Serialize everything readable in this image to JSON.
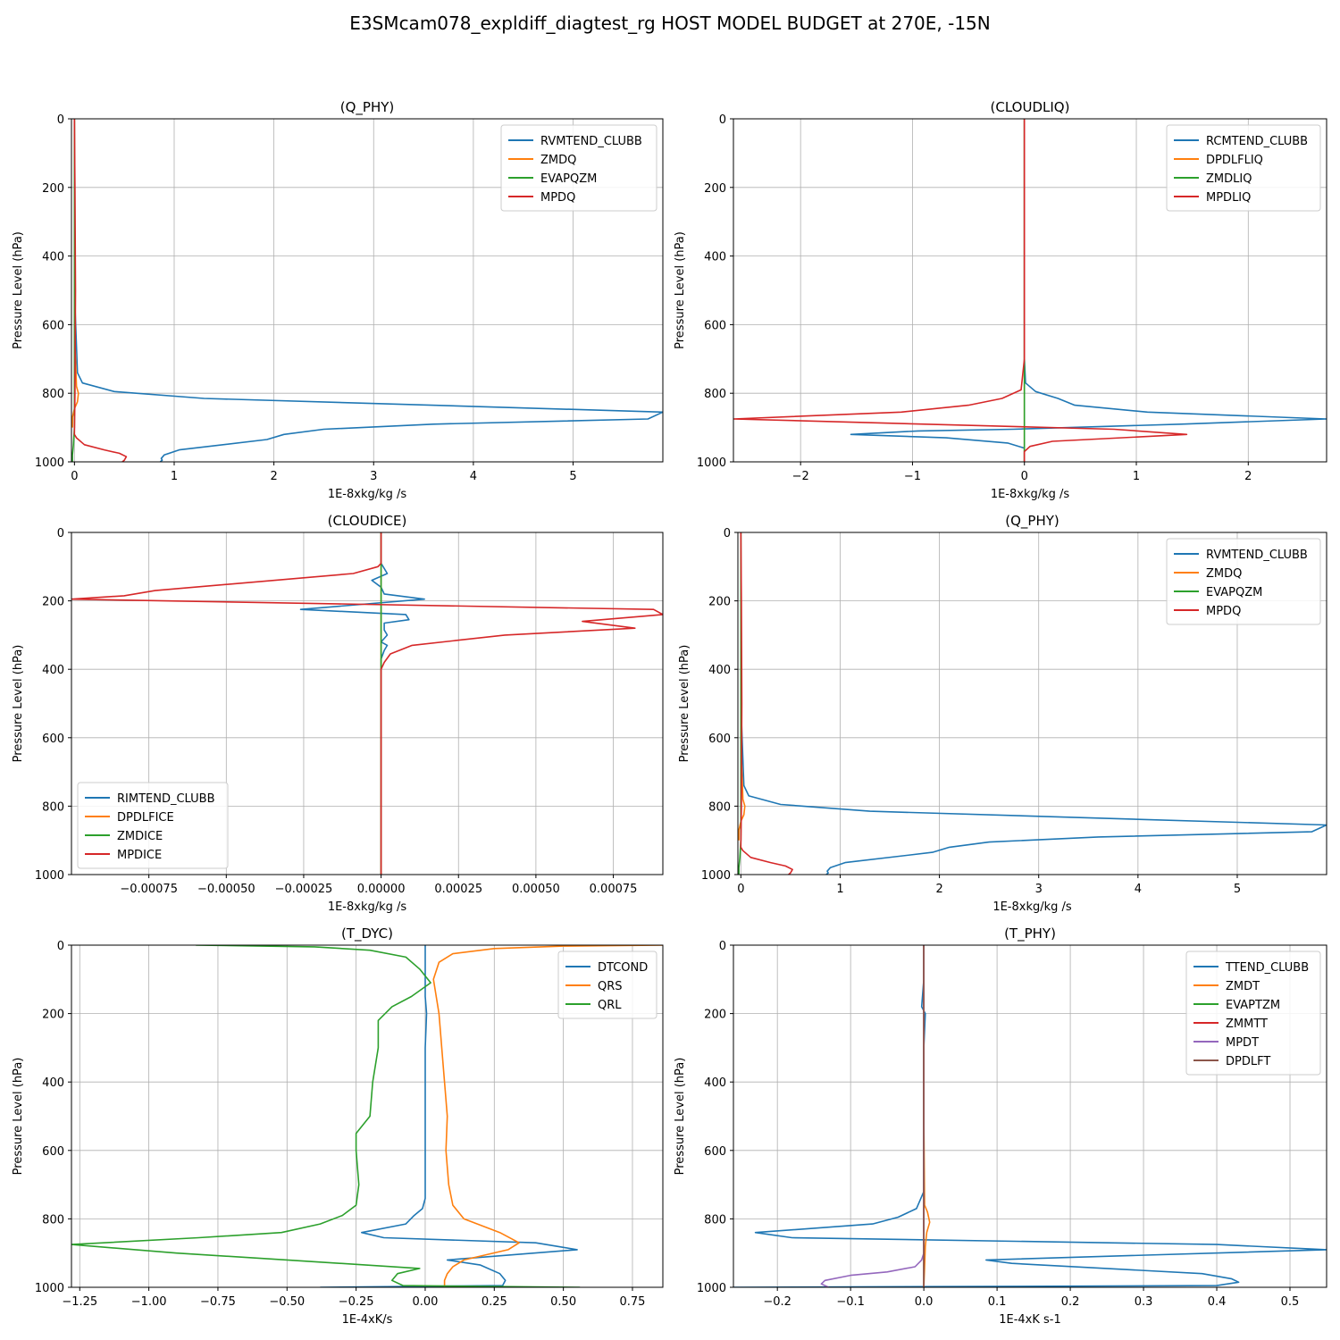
{
  "figure": {
    "title": "E3SMcam078_expldiff_diagtest_rg HOST MODEL BUDGET at 270E, -15N"
  },
  "chart_data": [
    {
      "type": "line",
      "title": "(Q_PHY)",
      "xlabel": "1E-8xkg/kg /s",
      "ylabel": "Pressure Level (hPa)",
      "xlim": [
        -0.03,
        5.9
      ],
      "ylim": [
        1000,
        0
      ],
      "xticks": [
        0,
        1,
        2,
        3,
        4,
        5
      ],
      "xtick_labels": [
        "0",
        "1",
        "2",
        "3",
        "4",
        "5"
      ],
      "yticks": [
        0,
        200,
        400,
        600,
        800,
        1000
      ],
      "grid": true,
      "legend_position": "top-right",
      "series": [
        {
          "name": "RVMTEND_CLUBB",
          "color": "#1f77b4",
          "x": [
            0,
            0,
            0,
            0.03,
            0.08,
            0.4,
            1.3,
            5.9,
            5.75,
            3.6,
            2.5,
            2.1,
            1.93,
            1.05,
            0.9,
            0.87,
            0.88,
            0.86
          ],
          "y": [
            0,
            200,
            500,
            740,
            770,
            795,
            815,
            855,
            875,
            890,
            905,
            920,
            935,
            965,
            980,
            990,
            995,
            1000
          ]
        },
        {
          "name": "ZMDQ",
          "color": "#ff7f0e",
          "x": [
            0,
            0,
            0,
            0.02,
            0.04,
            0.03,
            0.0,
            -0.02,
            -0.02
          ],
          "y": [
            0,
            200,
            600,
            780,
            800,
            825,
            845,
            870,
            900
          ]
        },
        {
          "name": "EVAPQZM",
          "color": "#2ca02c",
          "x": [
            0,
            0,
            0,
            -0.01,
            -0.02,
            -0.02
          ],
          "y": [
            0,
            600,
            900,
            950,
            980,
            1000
          ]
        },
        {
          "name": "MPDQ",
          "color": "#d62728",
          "x": [
            0,
            0.005,
            0.01,
            0.005,
            0.0,
            0.02,
            0.1,
            0.3,
            0.45,
            0.52,
            0.5,
            0.48
          ],
          "y": [
            0,
            200,
            500,
            800,
            920,
            930,
            950,
            965,
            975,
            985,
            995,
            1000
          ]
        }
      ]
    },
    {
      "type": "line",
      "title": "(CLOUDLIQ)",
      "xlabel": "1E-8xkg/kg /s",
      "ylabel": "Pressure Level (hPa)",
      "xlim": [
        -2.6,
        2.7
      ],
      "ylim": [
        1000,
        0
      ],
      "xticks": [
        -2,
        -1,
        0,
        1,
        2
      ],
      "xtick_labels": [
        "−2",
        "−1",
        "0",
        "1",
        "2"
      ],
      "yticks": [
        0,
        200,
        400,
        600,
        800,
        1000
      ],
      "grid": true,
      "legend_position": "top-right",
      "series": [
        {
          "name": "RCMTEND_CLUBB",
          "color": "#1f77b4",
          "x": [
            0,
            0,
            0.01,
            0.1,
            0.3,
            0.45,
            1.1,
            2.7,
            1.4,
            -0.1,
            -0.95,
            -1.55,
            -0.7,
            -0.15,
            0.0,
            0.0
          ],
          "y": [
            0,
            700,
            770,
            795,
            815,
            835,
            855,
            875,
            890,
            905,
            910,
            920,
            930,
            945,
            960,
            1000
          ]
        },
        {
          "name": "DPDLFLIQ",
          "color": "#ff7f0e",
          "x": [
            0,
            0
          ],
          "y": [
            0,
            1000
          ]
        },
        {
          "name": "ZMDLIQ",
          "color": "#2ca02c",
          "x": [
            0,
            0
          ],
          "y": [
            0,
            1000
          ]
        },
        {
          "name": "MPDLIQ",
          "color": "#d62728",
          "x": [
            0,
            0,
            -0.03,
            -0.2,
            -0.5,
            -1.1,
            -2.6,
            0.8,
            1.45,
            0.25,
            0.05,
            0.0,
            0.0
          ],
          "y": [
            0,
            700,
            790,
            815,
            835,
            855,
            875,
            905,
            920,
            940,
            955,
            970,
            1000
          ]
        }
      ]
    },
    {
      "type": "line",
      "title": "(CLOUDICE)",
      "xlabel": "1E-8xkg/kg /s",
      "ylabel": "Pressure Level (hPa)",
      "xlim": [
        -0.001,
        0.00091
      ],
      "ylim": [
        1000,
        0
      ],
      "xticks": [
        -0.00075,
        -0.0005,
        -0.00025,
        0,
        0.00025,
        0.0005,
        0.00075
      ],
      "xtick_labels": [
        "−0.00075",
        "−0.00050",
        "−0.00025",
        "0.00000",
        "0.00025",
        "0.00050",
        "0.00075"
      ],
      "yticks": [
        0,
        200,
        400,
        600,
        800,
        1000
      ],
      "grid": true,
      "legend_position": "lower-left",
      "series": [
        {
          "name": "RIMTEND_CLUBB",
          "color": "#1f77b4",
          "x": [
            0,
            0,
            2e-05,
            -3e-05,
            0.0,
            1e-05,
            0.00014,
            -0.00026,
            8e-05,
            9e-05,
            1e-05,
            1e-05,
            2e-05,
            0.0,
            2e-05,
            1e-05,
            0.0,
            0.0
          ],
          "y": [
            0,
            90,
            120,
            140,
            160,
            180,
            195,
            225,
            240,
            255,
            265,
            285,
            300,
            320,
            330,
            345,
            370,
            1000
          ]
        },
        {
          "name": "DPDLFICE",
          "color": "#ff7f0e",
          "x": [
            0,
            0
          ],
          "y": [
            0,
            1000
          ]
        },
        {
          "name": "ZMDICE",
          "color": "#2ca02c",
          "x": [
            0,
            0
          ],
          "y": [
            0,
            1000
          ]
        },
        {
          "name": "MPDICE",
          "color": "#d62728",
          "x": [
            0,
            0,
            -1e-05,
            -9e-05,
            -0.00073,
            -0.00083,
            -0.001,
            0.00088,
            0.00091,
            0.00065,
            0.00082,
            0.0004,
            0.0001,
            3e-05,
            1e-05,
            0.0,
            0.0
          ],
          "y": [
            0,
            90,
            100,
            120,
            170,
            185,
            195,
            225,
            240,
            260,
            280,
            300,
            330,
            355,
            380,
            400,
            1000
          ]
        }
      ]
    },
    {
      "type": "line",
      "title": "(Q_PHY)",
      "xlabel": "1E-8xkg/kg /s",
      "ylabel": "Pressure Level (hPa)",
      "xlim": [
        -0.03,
        5.9
      ],
      "ylim": [
        1000,
        0
      ],
      "xticks": [
        0,
        1,
        2,
        3,
        4,
        5
      ],
      "xtick_labels": [
        "0",
        "1",
        "2",
        "3",
        "4",
        "5"
      ],
      "yticks": [
        0,
        200,
        400,
        600,
        800,
        1000
      ],
      "grid": true,
      "legend_position": "top-right",
      "series": [
        {
          "name": "RVMTEND_CLUBB",
          "color": "#1f77b4",
          "x": [
            0,
            0,
            0,
            0.03,
            0.08,
            0.4,
            1.3,
            5.9,
            5.75,
            3.6,
            2.5,
            2.1,
            1.93,
            1.05,
            0.9,
            0.87,
            0.88,
            0.86
          ],
          "y": [
            0,
            200,
            500,
            740,
            770,
            795,
            815,
            855,
            875,
            890,
            905,
            920,
            935,
            965,
            980,
            990,
            995,
            1000
          ]
        },
        {
          "name": "ZMDQ",
          "color": "#ff7f0e",
          "x": [
            0,
            0,
            0,
            0.02,
            0.04,
            0.03,
            0.0,
            -0.02,
            -0.02
          ],
          "y": [
            0,
            200,
            600,
            780,
            800,
            825,
            845,
            870,
            900
          ]
        },
        {
          "name": "EVAPQZM",
          "color": "#2ca02c",
          "x": [
            0,
            0,
            0,
            -0.01,
            -0.02,
            -0.02
          ],
          "y": [
            0,
            600,
            900,
            950,
            980,
            1000
          ]
        },
        {
          "name": "MPDQ",
          "color": "#d62728",
          "x": [
            0,
            0.005,
            0.01,
            0.005,
            0.0,
            0.02,
            0.1,
            0.3,
            0.45,
            0.52,
            0.5,
            0.48
          ],
          "y": [
            0,
            200,
            500,
            800,
            920,
            930,
            950,
            965,
            975,
            985,
            995,
            1000
          ]
        }
      ]
    },
    {
      "type": "line",
      "title": "(T_DYC)",
      "xlabel": "1E-4xK/s",
      "ylabel": "Pressure Level (hPa)",
      "xlim": [
        -1.28,
        0.86
      ],
      "ylim": [
        1000,
        0
      ],
      "xticks": [
        -1.25,
        -1.0,
        -0.75,
        -0.5,
        -0.25,
        0,
        0.25,
        0.5,
        0.75
      ],
      "xtick_labels": [
        "−1.25",
        "−1.00",
        "−0.75",
        "−0.50",
        "−0.25",
        "0.00",
        "0.25",
        "0.50",
        "0.75"
      ],
      "yticks": [
        0,
        200,
        400,
        600,
        800,
        1000
      ],
      "grid": true,
      "legend_position": "top-right",
      "series": [
        {
          "name": "DTCOND",
          "color": "#1f77b4",
          "x": [
            0,
            0,
            0.005,
            0.0,
            0.0,
            0.0,
            -0.01,
            -0.04,
            -0.07,
            -0.23,
            -0.15,
            0.4,
            0.55,
            0.08,
            0.2,
            0.27,
            0.29,
            0.28,
            -0.38
          ],
          "y": [
            0,
            150,
            200,
            300,
            500,
            740,
            770,
            790,
            815,
            840,
            855,
            870,
            890,
            920,
            935,
            960,
            980,
            995,
            1000
          ]
        },
        {
          "name": "QRS",
          "color": "#ff7f0e",
          "x": [
            0.86,
            0.5,
            0.25,
            0.1,
            0.05,
            0.03,
            0.05,
            0.06,
            0.07,
            0.08,
            0.075,
            0.085,
            0.1,
            0.14,
            0.27,
            0.34,
            0.3,
            0.14,
            0.1,
            0.08,
            0.07,
            0.07
          ],
          "y": [
            0,
            3,
            10,
            25,
            50,
            100,
            200,
            300,
            400,
            500,
            600,
            700,
            760,
            800,
            840,
            870,
            890,
            920,
            940,
            960,
            980,
            1000
          ]
        },
        {
          "name": "QRL",
          "color": "#2ca02c",
          "x": [
            -0.83,
            -0.4,
            -0.2,
            -0.07,
            -0.02,
            0.02,
            -0.05,
            -0.12,
            -0.17,
            -0.17,
            -0.19,
            -0.2,
            -0.25,
            -0.25,
            -0.24,
            -0.25,
            -0.3,
            -0.38,
            -0.52,
            -0.82,
            -1.28,
            -0.9,
            -0.5,
            -0.02,
            -0.1,
            -0.12,
            -0.08,
            0.56
          ],
          "y": [
            0,
            5,
            15,
            35,
            70,
            110,
            150,
            180,
            220,
            300,
            400,
            500,
            550,
            600,
            700,
            760,
            790,
            815,
            840,
            855,
            875,
            900,
            920,
            945,
            960,
            980,
            995,
            1000
          ]
        }
      ]
    },
    {
      "type": "line",
      "title": "(T_PHY)",
      "xlabel": "1E-4xK s-1",
      "ylabel": "Pressure Level (hPa)",
      "xlim": [
        -0.26,
        0.55
      ],
      "ylim": [
        1000,
        0
      ],
      "xticks": [
        -0.2,
        -0.1,
        0,
        0.1,
        0.2,
        0.3,
        0.4,
        0.5
      ],
      "xtick_labels": [
        "−0.2",
        "−0.1",
        "0.0",
        "0.1",
        "0.2",
        "0.3",
        "0.4",
        "0.5"
      ],
      "yticks": [
        0,
        200,
        400,
        600,
        800,
        1000
      ],
      "grid": true,
      "legend_position": "top-right",
      "series": [
        {
          "name": "TTEND_CLUBB",
          "color": "#1f77b4",
          "x": [
            0,
            0,
            -0.003,
            0.002,
            0.0,
            0.0,
            0.0,
            -0.01,
            -0.035,
            -0.07,
            -0.23,
            -0.18,
            0.4,
            0.55,
            0.085,
            0.12,
            0.38,
            0.42,
            0.43,
            0.4,
            -0.26
          ],
          "y": [
            0,
            100,
            180,
            200,
            300,
            500,
            720,
            770,
            795,
            815,
            840,
            855,
            875,
            890,
            920,
            930,
            960,
            975,
            985,
            995,
            1000
          ]
        },
        {
          "name": "ZMDT",
          "color": "#ff7f0e",
          "x": [
            0,
            0,
            0.001,
            0.005,
            0.008,
            0.004,
            0.002,
            0.001,
            0.0
          ],
          "y": [
            0,
            500,
            760,
            780,
            810,
            840,
            880,
            940,
            1000
          ]
        },
        {
          "name": "EVAPTZM",
          "color": "#2ca02c",
          "x": [
            0,
            0
          ],
          "y": [
            0,
            1000
          ]
        },
        {
          "name": "ZMMTT",
          "color": "#d62728",
          "x": [
            0,
            0
          ],
          "y": [
            0,
            1000
          ]
        },
        {
          "name": "MPDT",
          "color": "#9467bd",
          "x": [
            0,
            0,
            -0.003,
            -0.012,
            -0.05,
            -0.1,
            -0.135,
            -0.14,
            -0.13
          ],
          "y": [
            0,
            900,
            920,
            940,
            955,
            965,
            980,
            990,
            1000
          ]
        },
        {
          "name": "DPDLFT",
          "color": "#8c564b",
          "x": [
            0,
            0
          ],
          "y": [
            0,
            1000
          ]
        }
      ]
    }
  ]
}
